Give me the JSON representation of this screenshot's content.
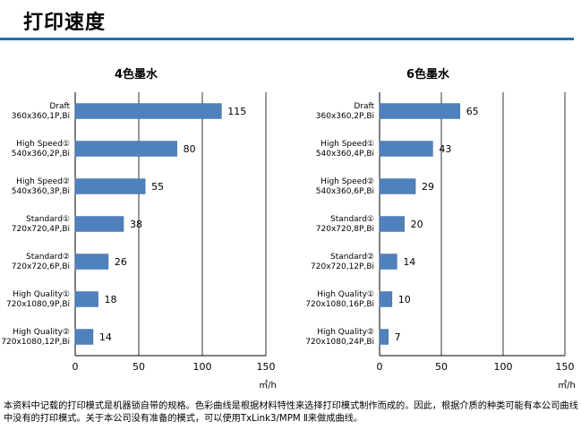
{
  "page": {
    "title": "打印速度",
    "footnote": "本资料中记载的打印模式是机器锁自带的规格。色彩曲线是根据材料特性来选择打印模式制作而成的。因此，根据介质的种类可能有本公司曲线中没有的打印模式。关于本公司没有准备的模式，可以使用TxLink3/MPM Ⅱ来做成曲线。"
  },
  "colors": {
    "bar": "#4f81bd",
    "bar_edge": "#3a6ba5",
    "grid": "#000000",
    "rule": "#1f6fb5"
  },
  "chart_data": [
    {
      "type": "bar",
      "orientation": "horizontal",
      "title": "4色墨水",
      "categories": [
        [
          "Draft",
          "360x360,1P,Bi"
        ],
        [
          "High Speed①",
          "540x360,2P,Bi"
        ],
        [
          "High Speed②",
          "540x360,3P,Bi"
        ],
        [
          "Standard①",
          "720x720,4P,Bi"
        ],
        [
          "Standard②",
          "720x720,6P,Bi"
        ],
        [
          "High Quality①",
          "720x1080,9P,Bi"
        ],
        [
          "High Quality②",
          "720x1080,12P,Bi"
        ]
      ],
      "values": [
        115,
        80,
        55,
        38,
        26,
        18,
        14
      ],
      "xlim": [
        0,
        150
      ],
      "xticks": [
        0,
        50,
        100,
        150
      ],
      "xlabel": "㎡/h",
      "grid": true
    },
    {
      "type": "bar",
      "orientation": "horizontal",
      "title": "6色墨水",
      "categories": [
        [
          "Draft",
          "360x360,2P,Bi"
        ],
        [
          "High Speed①",
          "540x360,4P,Bi"
        ],
        [
          "High Speed②",
          "540x360,6P,Bi"
        ],
        [
          "Standard①",
          "720x720,8P,Bi"
        ],
        [
          "Standard②",
          "720x720,12P,Bi"
        ],
        [
          "High Quality①",
          "720x1080,16P,Bi"
        ],
        [
          "High Quality②",
          "720x1080,24P,Bi"
        ]
      ],
      "values": [
        65,
        43,
        29,
        20,
        14,
        10,
        7
      ],
      "xlim": [
        0,
        150
      ],
      "xticks": [
        0,
        50,
        100,
        150
      ],
      "xlabel": "㎡/h",
      "grid": true
    }
  ]
}
